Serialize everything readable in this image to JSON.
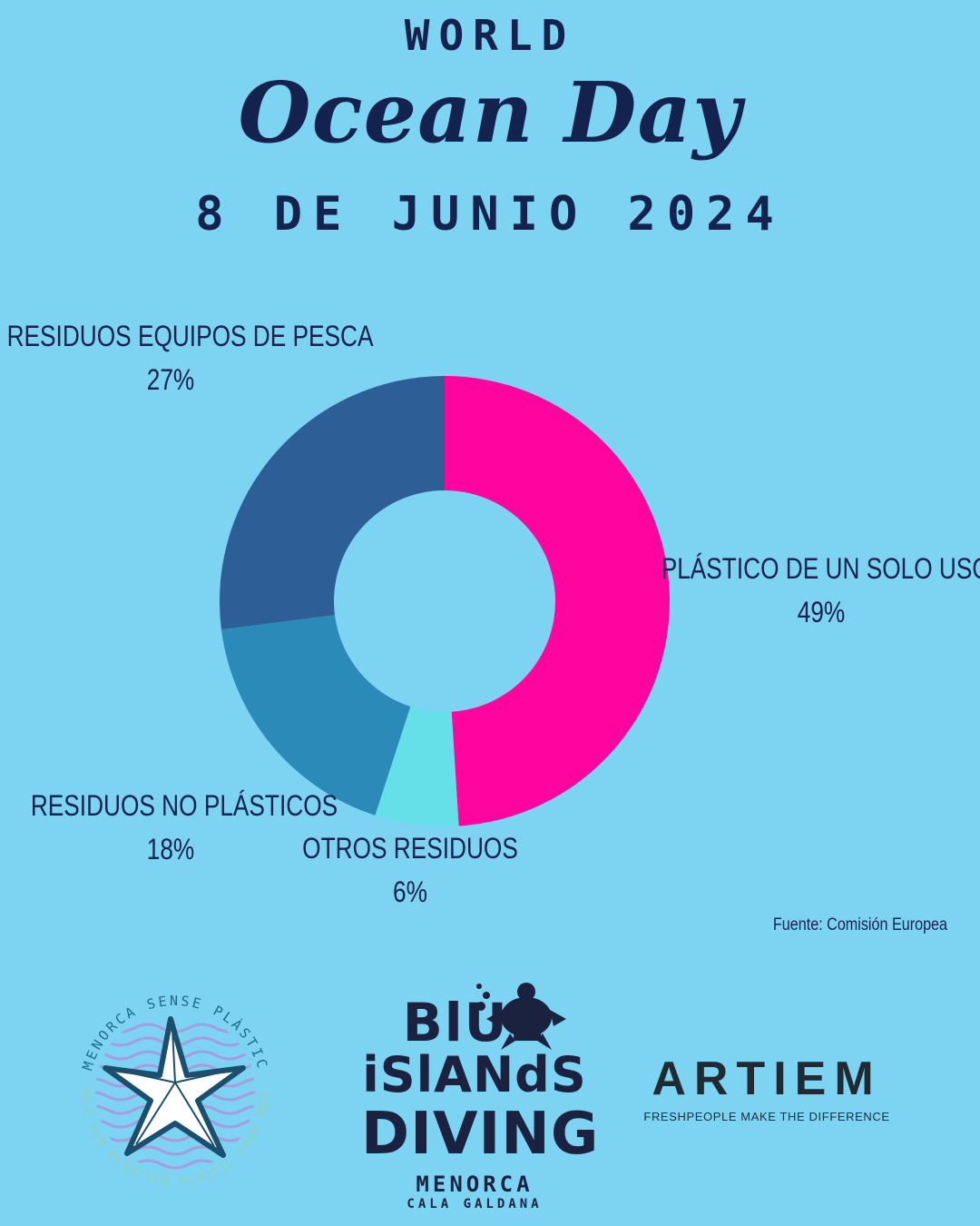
{
  "header": {
    "line1": "WORLD",
    "line2": "Ocean Day",
    "date": "8 DE JUNIO 2024"
  },
  "chart_data": {
    "type": "pie",
    "variant": "donut",
    "title": "",
    "slices": [
      {
        "label": "PLÁSTICO DE UN SOLO USO",
        "value": 49,
        "value_label": "49%",
        "color": "#ff05a0"
      },
      {
        "label": "OTROS RESIDUOS",
        "value": 6,
        "value_label": "6%",
        "color": "#66e0e8"
      },
      {
        "label": "RESIDUOS NO PLÁSTICOS",
        "value": 18,
        "value_label": "18%",
        "color": "#2b8ab8"
      },
      {
        "label": "RESIDUOS EQUIPOS DE PESCA",
        "value": 27,
        "value_label": "27%",
        "color": "#2d5e96"
      }
    ],
    "source": "Fuente: Comisión Europea"
  },
  "logos": {
    "menorca_sense_plastic": {
      "outer_text": "MENORCA SENSE PLÀSTIC",
      "inner_text": "MENORCA SIN PLÁSTICO PLASTIC FREE MENORCA",
      "icon": "starfish-icon"
    },
    "blue_islands_diving": {
      "line1": "BlUE",
      "line2": "iSlANdS",
      "line3": "DIVING",
      "line4": "MENORCA",
      "line5": "CALA GALDANA",
      "icon": "turtle-icon"
    },
    "artiem": {
      "name": "ARTIEM",
      "tagline": "FRESHPEOPLE MAKE THE DIFFERENCE"
    }
  }
}
